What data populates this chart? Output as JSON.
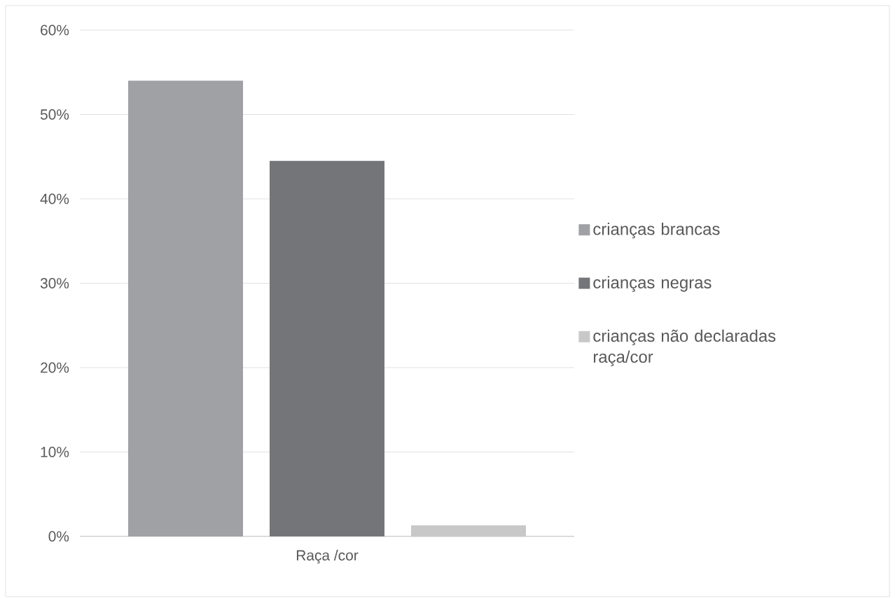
{
  "chart_data": {
    "type": "bar",
    "categories": [
      "Raça /cor"
    ],
    "series": [
      {
        "name": "crianças brancas",
        "color": "#a0a1a4",
        "values": [
          54.0
        ]
      },
      {
        "name": "crianças negras",
        "color": "#747579",
        "values": [
          44.5
        ]
      },
      {
        "name": "crianças não declaradas raça/cor",
        "color": "#c8c8c8",
        "values": [
          1.3
        ]
      }
    ],
    "ylim": [
      0,
      60
    ],
    "yticks": [
      {
        "value": 0,
        "label": "0%"
      },
      {
        "value": 10,
        "label": "10%"
      },
      {
        "value": 20,
        "label": "20%"
      },
      {
        "value": 30,
        "label": "30%"
      },
      {
        "value": 40,
        "label": "40%"
      },
      {
        "value": 50,
        "label": "50%"
      },
      {
        "value": 60,
        "label": "60%"
      }
    ],
    "grid": "y",
    "legend": "right"
  }
}
